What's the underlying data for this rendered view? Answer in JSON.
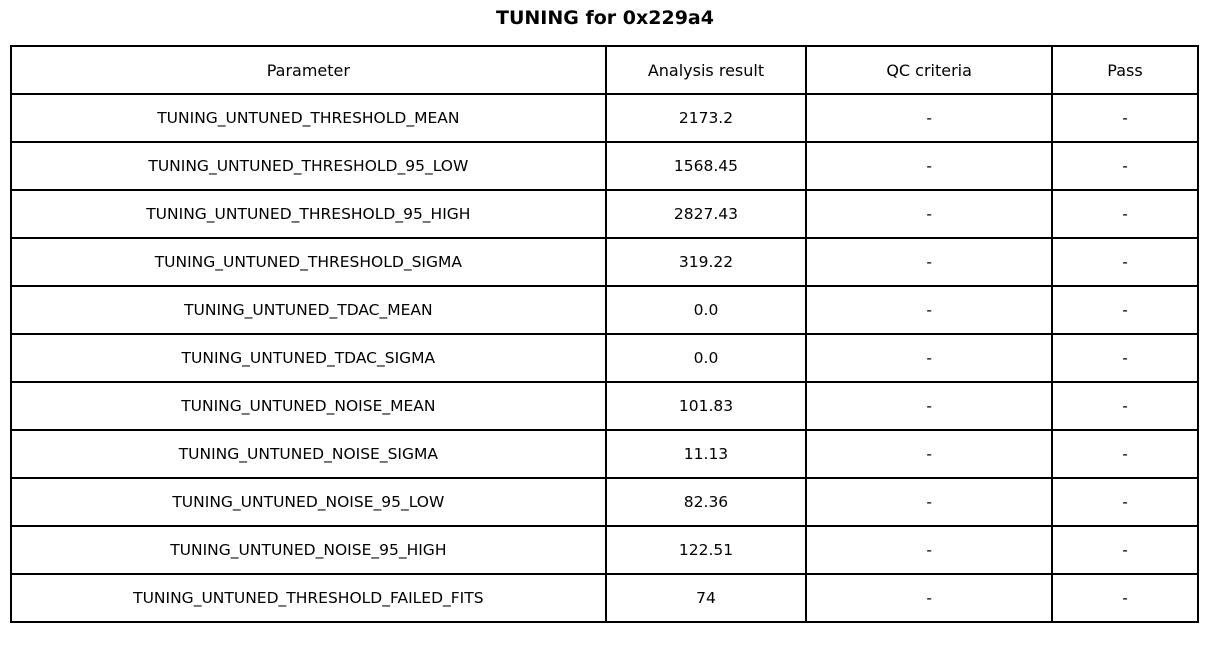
{
  "title": "TUNING for 0x229a4",
  "chart_data": {
    "type": "table",
    "title": "TUNING for 0x229a4",
    "columns": [
      "Parameter",
      "Analysis result",
      "QC criteria",
      "Pass"
    ],
    "rows": [
      [
        "TUNING_UNTUNED_THRESHOLD_MEAN",
        "2173.2",
        "-",
        "-"
      ],
      [
        "TUNING_UNTUNED_THRESHOLD_95_LOW",
        "1568.45",
        "-",
        "-"
      ],
      [
        "TUNING_UNTUNED_THRESHOLD_95_HIGH",
        "2827.43",
        "-",
        "-"
      ],
      [
        "TUNING_UNTUNED_THRESHOLD_SIGMA",
        "319.22",
        "-",
        "-"
      ],
      [
        "TUNING_UNTUNED_TDAC_MEAN",
        "0.0",
        "-",
        "-"
      ],
      [
        "TUNING_UNTUNED_TDAC_SIGMA",
        "0.0",
        "-",
        "-"
      ],
      [
        "TUNING_UNTUNED_NOISE_MEAN",
        "101.83",
        "-",
        "-"
      ],
      [
        "TUNING_UNTUNED_NOISE_SIGMA",
        "11.13",
        "-",
        "-"
      ],
      [
        "TUNING_UNTUNED_NOISE_95_LOW",
        "82.36",
        "-",
        "-"
      ],
      [
        "TUNING_UNTUNED_NOISE_95_HIGH",
        "122.51",
        "-",
        "-"
      ],
      [
        "TUNING_UNTUNED_THRESHOLD_FAILED_FITS",
        "74",
        "-",
        "-"
      ]
    ],
    "layout": {
      "grid": true,
      "border_color": "#000000",
      "background": "#ffffff",
      "text_align": "center"
    }
  }
}
